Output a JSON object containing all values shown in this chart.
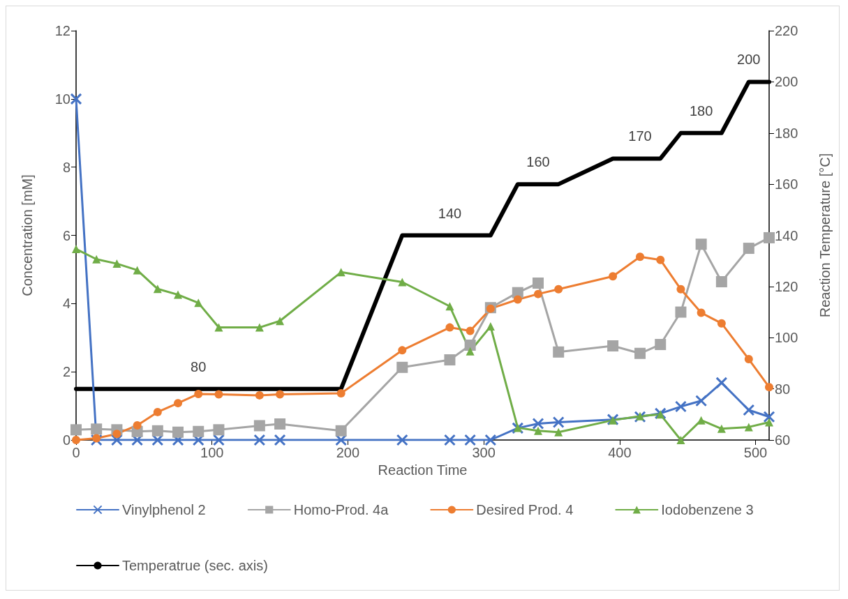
{
  "chart_data": {
    "type": "line",
    "xlabel": "Reaction Time",
    "ylabel": "Concentration [mM]",
    "y2label": "Reaction Temperature [°C]",
    "x": [
      0,
      15,
      30,
      45,
      60,
      75,
      90,
      105,
      135,
      150,
      195,
      240,
      275,
      290,
      305,
      325,
      340,
      355,
      395,
      415,
      430,
      445,
      460,
      475,
      495,
      510
    ],
    "series": [
      {
        "name": "Vinylphenol 2",
        "color": "#4472c4",
        "marker": "cross",
        "values": [
          10,
          0,
          0,
          0,
          0,
          0,
          0,
          0,
          0,
          0,
          0,
          0,
          0,
          0,
          0,
          0.35,
          0.48,
          0.52,
          0.6,
          0.68,
          0.78,
          0.98,
          1.15,
          1.68,
          0.88,
          0.68
        ]
      },
      {
        "name": "Homo-Prod. 4a",
        "color": "#a5a5a5",
        "marker": "square",
        "values": [
          0.3,
          0.32,
          0.3,
          0.25,
          0.27,
          0.23,
          0.25,
          0.3,
          0.42,
          0.47,
          0.27,
          2.13,
          2.35,
          2.78,
          3.88,
          4.32,
          4.6,
          2.58,
          2.76,
          2.54,
          2.8,
          3.75,
          5.74,
          4.64,
          5.62,
          5.93
        ]
      },
      {
        "name": "Desired Prod. 4",
        "color": "#ed7d31",
        "marker": "circle",
        "values": [
          0,
          0.05,
          0.18,
          0.43,
          0.82,
          1.08,
          1.35,
          1.34,
          1.31,
          1.34,
          1.37,
          2.63,
          3.3,
          3.2,
          3.85,
          4.12,
          4.28,
          4.42,
          4.8,
          5.37,
          5.28,
          4.42,
          3.73,
          3.42,
          2.37,
          1.55
        ]
      },
      {
        "name": "Iodobenzene 3",
        "color": "#70ad47",
        "marker": "triangle",
        "values": [
          5.6,
          5.3,
          5.17,
          4.98,
          4.43,
          4.26,
          4.02,
          3.3,
          3.3,
          3.49,
          4.92,
          4.63,
          3.92,
          2.6,
          3.33,
          0.36,
          0.27,
          0.23,
          0.58,
          0.7,
          0.75,
          0,
          0.58,
          0.33,
          0.38,
          0.52
        ]
      },
      {
        "name": "Temperatrue (sec. axis)",
        "color": "#000000",
        "marker": "none",
        "axis": "y2",
        "values": [
          80,
          80,
          80,
          80,
          80,
          80,
          80,
          80,
          80,
          80,
          80,
          140,
          140,
          140,
          140,
          160,
          160,
          160,
          170,
          170,
          170,
          180,
          180,
          180,
          200,
          200
        ],
        "value_labels": [
          null,
          null,
          null,
          null,
          null,
          null,
          "80",
          null,
          null,
          null,
          null,
          null,
          "140",
          null,
          null,
          null,
          "160",
          null,
          null,
          "170",
          null,
          null,
          "180",
          null,
          "200",
          null
        ]
      }
    ],
    "xlim": [
      0,
      510
    ],
    "xticks": [
      0,
      100,
      200,
      300,
      400,
      500
    ],
    "ylim": [
      0,
      12
    ],
    "yticks": [
      0,
      2,
      4,
      6,
      8,
      10,
      12
    ],
    "y2lim": [
      60,
      220
    ],
    "y2ticks": [
      60,
      80,
      100,
      120,
      140,
      160,
      180,
      200,
      220
    ],
    "grid": false,
    "legend": "bottom"
  }
}
